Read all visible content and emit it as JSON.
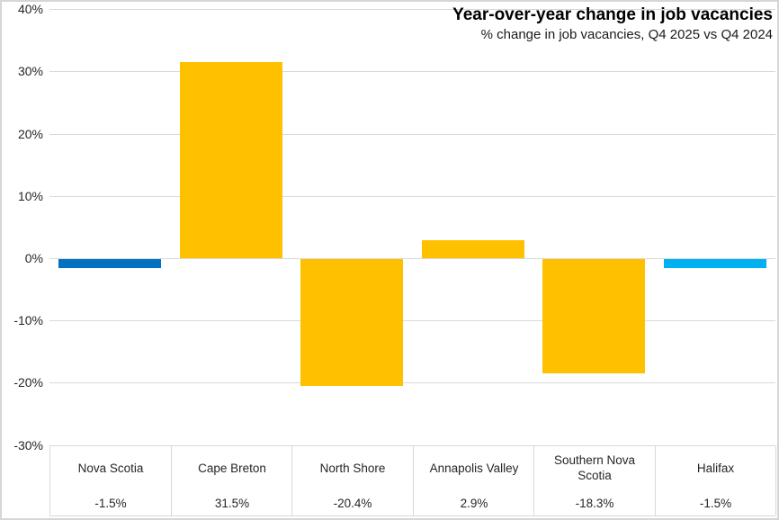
{
  "chart_data": {
    "type": "bar",
    "title": "Year-over-year change in job vacancies",
    "subtitle": "% change in job vacancies, Q4 2025 vs Q4 2024",
    "categories": [
      "Nova Scotia",
      "Cape Breton",
      "North Shore",
      "Annapolis Valley",
      "Southern Nova Scotia",
      "Halifax"
    ],
    "values": [
      -1.5,
      31.5,
      -20.4,
      2.9,
      -18.3,
      -1.5
    ],
    "value_labels": [
      "-1.5%",
      "31.5%",
      "-20.4%",
      "2.9%",
      "-18.3%",
      "-1.5%"
    ],
    "bar_colors": [
      "#0070C0",
      "#FFC000",
      "#FFC000",
      "#FFC000",
      "#FFC000",
      "#00B0F0"
    ],
    "xlabel": "",
    "ylabel": "",
    "ylim": [
      -30,
      40
    ],
    "ytick_step": 10,
    "ytick_labels": [
      "40%",
      "30%",
      "20%",
      "10%",
      "0%",
      "-10%",
      "-20%",
      "-30%"
    ],
    "grid": true,
    "legend": "none",
    "gridline_color": "#D9D9D9",
    "border_color": "#D6D6D6",
    "axis_text_color": "#262626"
  }
}
